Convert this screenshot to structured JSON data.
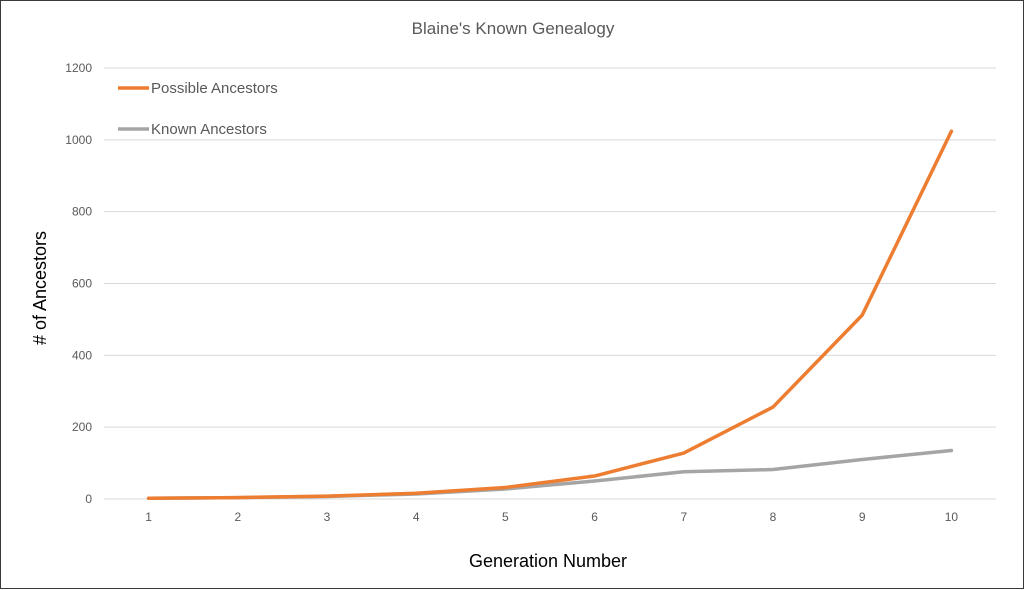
{
  "chart_data": {
    "type": "line",
    "title": "Blaine's Known Genealogy",
    "xlabel": "Generation Number",
    "ylabel": "# of Ancestors",
    "categories": [
      "1",
      "2",
      "3",
      "4",
      "5",
      "6",
      "7",
      "8",
      "9",
      "10"
    ],
    "ylim": [
      0,
      1200
    ],
    "yticks": [
      "0",
      "200",
      "400",
      "600",
      "800",
      "1000",
      "1200"
    ],
    "grid": true,
    "legend_position": "top-left",
    "series": [
      {
        "name": "Possible Ancestors",
        "color": "#ed7d31",
        "values": [
          2,
          4,
          8,
          16,
          32,
          64,
          128,
          256,
          512,
          1024
        ]
      },
      {
        "name": "Known Ancestors",
        "color": "#a5a5a5",
        "values": [
          2,
          4,
          7,
          14,
          28,
          50,
          76,
          82,
          110,
          135
        ]
      }
    ]
  }
}
